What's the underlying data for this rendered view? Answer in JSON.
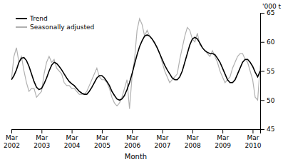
{
  "chart_data": {
    "type": "line",
    "xlabel": "Month",
    "ylabel": "'000 t",
    "categories": [
      "Mar\n2002",
      null,
      null,
      null,
      null,
      null,
      null,
      null,
      null,
      null,
      null,
      null,
      "Mar\n2003",
      null,
      null,
      null,
      null,
      null,
      null,
      null,
      null,
      null,
      null,
      null,
      "Mar\n2004",
      null,
      null,
      null,
      null,
      null,
      null,
      null,
      null,
      null,
      null,
      null,
      "Mar\n2005",
      null,
      null,
      null,
      null,
      null,
      null,
      null,
      null,
      null,
      null,
      null,
      "Mar\n2006",
      null,
      null,
      null,
      null,
      null,
      null,
      null,
      null,
      null,
      null,
      null,
      "Mar\n2007",
      null,
      null,
      null,
      null,
      null,
      null,
      null,
      null,
      null,
      null,
      null,
      "Mar\n2008",
      null,
      null,
      null,
      null,
      null,
      null,
      null,
      null,
      null,
      null,
      null,
      "Mar\n2009",
      null,
      null,
      null,
      null,
      null,
      null,
      null,
      null,
      null,
      null,
      null,
      "Mar\n2010",
      null,
      null,
      null
    ],
    "ylim": [
      45,
      65
    ],
    "yticks": [
      45,
      50,
      55,
      60,
      65
    ],
    "grid": false,
    "legend": "top-left",
    "series": [
      {
        "name": "Trend",
        "color": "#000000",
        "values": [
          53.5,
          54.2,
          55.2,
          56.5,
          57.2,
          57.3,
          56.8,
          55.8,
          54.5,
          53.2,
          52.2,
          51.8,
          52.0,
          52.8,
          53.8,
          55.0,
          56.0,
          56.5,
          56.3,
          55.8,
          55.2,
          54.5,
          53.8,
          53.2,
          52.8,
          52.5,
          52.0,
          51.5,
          51.2,
          51.0,
          51.0,
          51.5,
          52.2,
          53.0,
          53.8,
          54.2,
          54.2,
          53.8,
          53.2,
          52.5,
          51.5,
          50.8,
          50.2,
          50.0,
          50.2,
          50.8,
          51.8,
          53.0,
          54.5,
          56.2,
          57.8,
          59.2,
          60.2,
          61.0,
          61.2,
          61.0,
          60.5,
          59.8,
          59.0,
          58.0,
          57.0,
          56.0,
          55.2,
          54.5,
          53.8,
          53.5,
          53.5,
          54.0,
          55.0,
          56.5,
          58.0,
          59.5,
          60.5,
          60.8,
          60.5,
          59.8,
          59.0,
          58.5,
          58.2,
          58.0,
          58.0,
          57.8,
          57.2,
          56.5,
          55.5,
          54.5,
          53.5,
          53.0,
          53.0,
          53.5,
          54.5,
          55.5,
          56.5,
          57.0,
          57.0,
          56.5,
          55.8,
          54.8,
          54.0,
          55.0
        ]
      },
      {
        "name": "Seasonally adjusted",
        "color": "#b0b0b0",
        "values": [
          53.5,
          57.5,
          59.0,
          56.5,
          57.5,
          55.0,
          53.0,
          51.5,
          52.0,
          52.0,
          50.5,
          51.0,
          51.5,
          54.5,
          56.5,
          57.5,
          56.5,
          57.0,
          55.5,
          55.0,
          54.5,
          53.0,
          52.5,
          52.5,
          52.0,
          52.0,
          51.5,
          51.0,
          51.0,
          51.0,
          51.5,
          52.5,
          53.5,
          54.5,
          55.5,
          54.0,
          53.5,
          53.5,
          53.0,
          52.0,
          50.5,
          49.5,
          49.0,
          49.5,
          50.5,
          52.0,
          53.5,
          48.5,
          54.0,
          57.0,
          62.0,
          64.0,
          63.0,
          61.0,
          62.0,
          61.0,
          60.5,
          60.0,
          59.0,
          58.0,
          56.5,
          55.0,
          54.0,
          53.0,
          53.5,
          54.0,
          54.5,
          57.0,
          59.0,
          61.0,
          62.5,
          62.0,
          60.5,
          60.0,
          61.5,
          59.5,
          59.0,
          58.5,
          58.0,
          57.5,
          58.5,
          57.5,
          56.5,
          55.0,
          54.0,
          53.0,
          53.5,
          54.0,
          55.5,
          56.5,
          57.5,
          58.0,
          58.0,
          57.0,
          56.5,
          55.0,
          53.5,
          50.5,
          50.0,
          56.0
        ]
      }
    ]
  }
}
